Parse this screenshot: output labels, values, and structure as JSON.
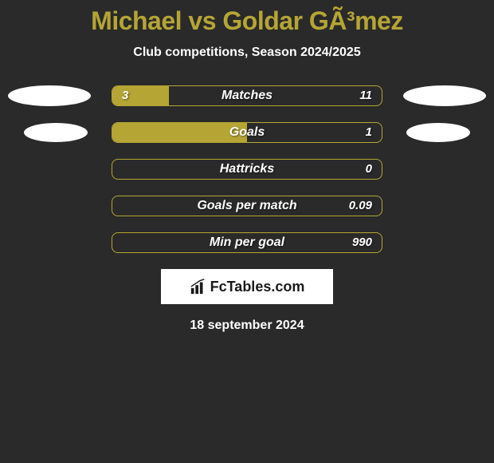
{
  "title": "Michael vs Goldar GÃ³mez",
  "subtitle": "Club competitions, Season 2024/2025",
  "background_color": "#2a2a2a",
  "accent_color": "#b5a534",
  "text_color": "#ffffff",
  "stats": [
    {
      "label": "Matches",
      "left_value": "3",
      "right_value": "11",
      "fill_percent": 21,
      "show_left_ellipse": true,
      "show_right_ellipse": true,
      "ellipse_size": "large"
    },
    {
      "label": "Goals",
      "left_value": "",
      "right_value": "1",
      "fill_percent": 50,
      "show_left_ellipse": true,
      "show_right_ellipse": true,
      "ellipse_size": "small"
    },
    {
      "label": "Hattricks",
      "left_value": "",
      "right_value": "0",
      "fill_percent": 0,
      "show_left_ellipse": false,
      "show_right_ellipse": false
    },
    {
      "label": "Goals per match",
      "left_value": "",
      "right_value": "0.09",
      "fill_percent": 0,
      "show_left_ellipse": false,
      "show_right_ellipse": false
    },
    {
      "label": "Min per goal",
      "left_value": "",
      "right_value": "990",
      "fill_percent": 0,
      "show_left_ellipse": false,
      "show_right_ellipse": false
    }
  ],
  "logo": {
    "text": "FcTables.com"
  },
  "date": "18 september 2024"
}
